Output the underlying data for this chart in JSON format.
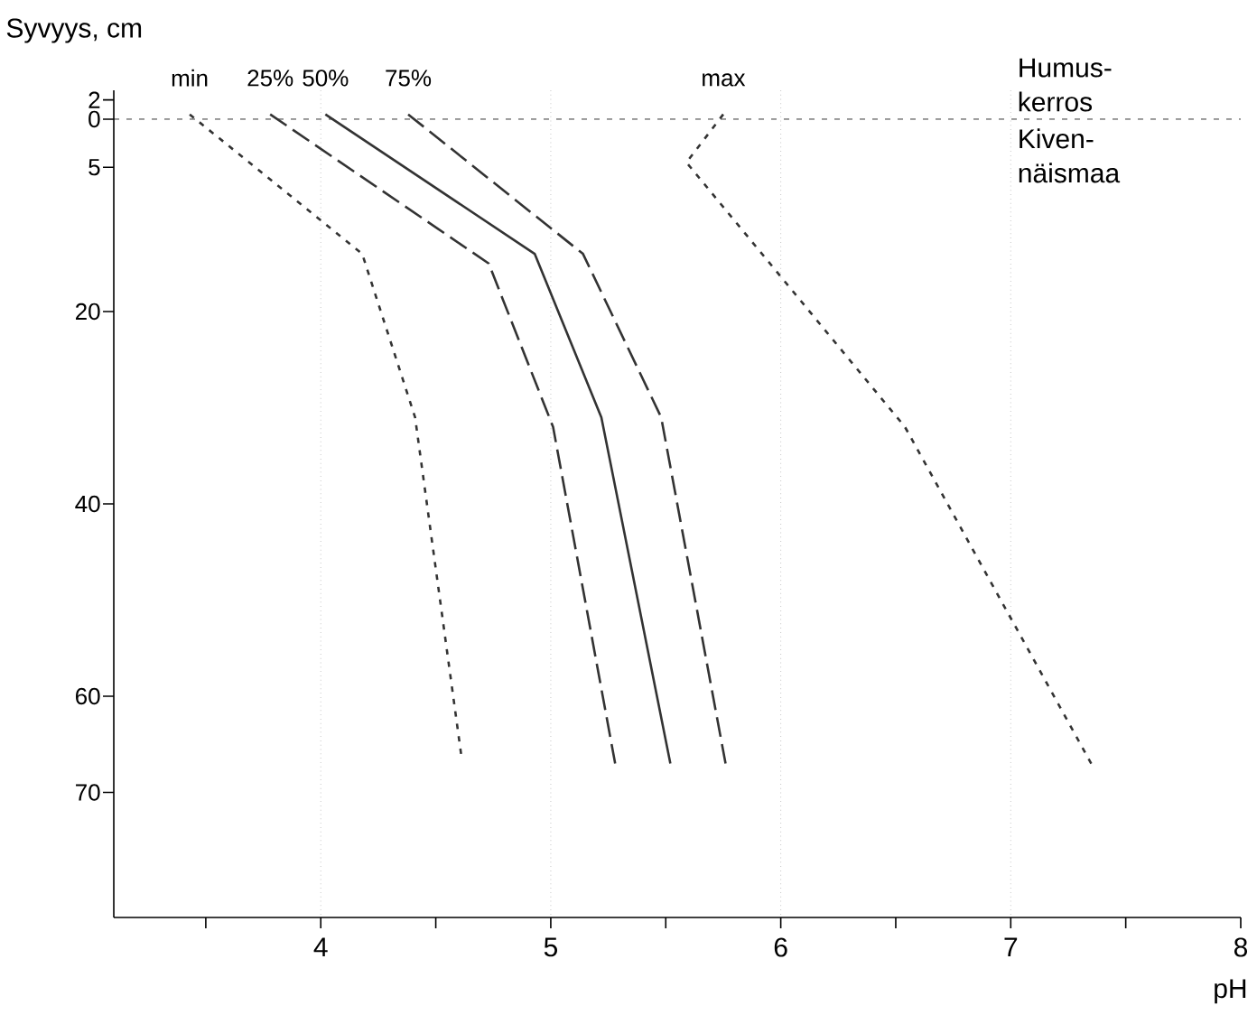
{
  "chart_data": {
    "type": "line",
    "ylabel": "Syvyys, cm",
    "xlabel": "pH",
    "xlim": [
      3.1,
      8
    ],
    "ylim": [
      83,
      -3
    ],
    "xticks": [
      {
        "value": 3.5,
        "label": null
      },
      4,
      {
        "value": 4.5,
        "label": null
      },
      5,
      {
        "value": 5.5,
        "label": null
      },
      6,
      {
        "value": 6.5,
        "label": null
      },
      7,
      {
        "value": 7.5,
        "label": null
      },
      8
    ],
    "yticks": [
      {
        "value": -2,
        "label": "2"
      },
      0,
      5,
      20,
      40,
      60,
      70
    ],
    "grid": "x",
    "marker": "none",
    "ref_lines": [
      {
        "axis": "y",
        "value": 0,
        "line_style": "dotted"
      }
    ],
    "annotations": [
      "Humus-kerros",
      "Kiven-näismaa"
    ],
    "series": [
      {
        "name": "min",
        "color": "#333333",
        "line_style": "dotted",
        "x": [
          3.43,
          4.18,
          4.41,
          4.61
        ],
        "values": [
          -0.5,
          14,
          31,
          66
        ]
      },
      {
        "name": "25%",
        "color": "#333333",
        "line_style": "dashed",
        "x": [
          3.78,
          4.73,
          5.01,
          5.28
        ],
        "values": [
          -0.5,
          15,
          32,
          67
        ]
      },
      {
        "name": "50%",
        "color": "#333333",
        "line_style": "solid",
        "x": [
          4.02,
          4.93,
          5.22,
          5.52
        ],
        "values": [
          -0.5,
          14,
          31,
          67
        ]
      },
      {
        "name": "75%",
        "color": "#333333",
        "line_style": "dashed",
        "x": [
          4.38,
          5.14,
          5.48,
          5.76
        ],
        "values": [
          -0.5,
          14,
          31,
          67
        ]
      },
      {
        "name": "max",
        "color": "#333333",
        "line_style": "dotted",
        "x": [
          5.75,
          5.59,
          6.54,
          7.35
        ],
        "values": [
          -0.5,
          4.5,
          32,
          67
        ]
      }
    ]
  }
}
